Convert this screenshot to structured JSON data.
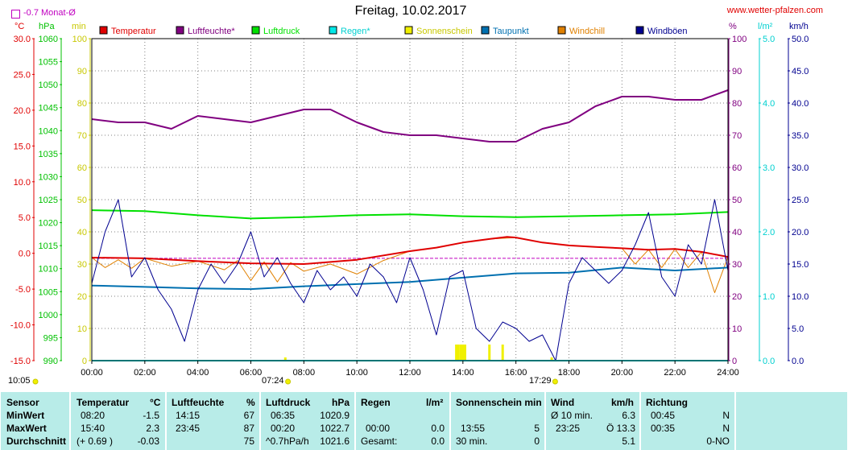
{
  "header": {
    "title": "Freitag, 10.02.2017",
    "site": "www.wetter-pfalzen.com",
    "monat_label": "-0.7 Monat-Ø",
    "unit_c": "°C",
    "unit_hpa": "hPa",
    "unit_min": "min",
    "unit_pct": "%",
    "unit_lm2": "l/m²",
    "unit_kmh": "km/h",
    "sunrise": "07:24",
    "sunset": "17:29",
    "daylength": "10:05"
  },
  "colors": {
    "temperatur": "#e00000",
    "luftfeuchte": "#800080",
    "luftdruck": "#00e000",
    "regen": "#00e8e8",
    "sonnenschein": "#f0f000",
    "taupunkt": "#0070b0",
    "windchill": "#e08000",
    "windboeen": "#000090",
    "monat": "#c000c0"
  },
  "chart_data": {
    "type": "line",
    "title": "Freitag, 10.02.2017",
    "legend": [
      "Temperatur",
      "Luftfeuchte*",
      "Luftdruck",
      "Regen*",
      "Sonnenschein",
      "Taupunkt",
      "Windchill",
      "Windböen"
    ],
    "legend_position": "top",
    "x_ticks": [
      "00:00",
      "02:00",
      "04:00",
      "06:00",
      "08:00",
      "10:00",
      "12:00",
      "14:00",
      "16:00",
      "18:00",
      "20:00",
      "22:00",
      "24:00"
    ],
    "axes": {
      "temp_c": {
        "ticks": [
          "30.0",
          "25.0",
          "20.0",
          "15.0",
          "10.0",
          "5.0",
          "0.0",
          "-5.0",
          "-10.0",
          "-15.0"
        ],
        "range": [
          -15,
          30
        ]
      },
      "pressure_hpa": {
        "ticks": [
          "1060",
          "1055",
          "1050",
          "1045",
          "1040",
          "1035",
          "1030",
          "1025",
          "1020",
          "1015",
          "1010",
          "1005",
          "1000",
          "995",
          "990"
        ],
        "range": [
          990,
          1060
        ]
      },
      "sun_min": {
        "ticks": [
          "100",
          "90",
          "80",
          "70",
          "60",
          "50",
          "40",
          "30",
          "20",
          "10",
          "0"
        ],
        "range": [
          0,
          100
        ]
      },
      "humidity_pct": {
        "ticks": [
          "100",
          "90",
          "80",
          "70",
          "60",
          "50",
          "40",
          "30",
          "20",
          "10",
          "0"
        ],
        "range": [
          0,
          100
        ]
      },
      "rain_lm2": {
        "ticks": [
          "5.0",
          "4.0",
          "3.0",
          "2.0",
          "1.0",
          "0.0"
        ],
        "range": [
          0,
          5
        ]
      },
      "wind_kmh": {
        "ticks": [
          "50.0",
          "45.0",
          "40.0",
          "35.0",
          "30.0",
          "25.0",
          "20.0",
          "15.0",
          "10.0",
          "5.0",
          "0.0"
        ],
        "range": [
          0,
          50
        ]
      }
    },
    "series": [
      {
        "name": "Luftfeuchte*",
        "axis": "humidity_pct",
        "x": [
          0,
          1,
          2,
          3,
          4,
          5,
          6,
          7,
          8,
          9,
          10,
          11,
          12,
          13,
          14,
          15,
          16,
          17,
          18,
          19,
          20,
          21,
          22,
          23,
          24
        ],
        "y": [
          75,
          74,
          74,
          72,
          76,
          75,
          74,
          76,
          78,
          78,
          74,
          71,
          70,
          70,
          69,
          68,
          68,
          72,
          74,
          79,
          82,
          82,
          81,
          81,
          84
        ]
      },
      {
        "name": "Luftdruck",
        "axis": "pressure_hpa",
        "x": [
          0,
          2,
          4,
          6,
          8,
          10,
          12,
          14,
          16,
          18,
          20,
          22,
          24
        ],
        "y": [
          1022.7,
          1022.5,
          1021.6,
          1020.9,
          1021.2,
          1021.6,
          1021.8,
          1021.4,
          1021.2,
          1021.4,
          1021.6,
          1021.8,
          1022.3
        ]
      },
      {
        "name": "Temperatur",
        "axis": "temp_c",
        "x": [
          0,
          2,
          4,
          6,
          8,
          10,
          12,
          13,
          14,
          15,
          15.67,
          16,
          17,
          18,
          19,
          20,
          21,
          22,
          23,
          24
        ],
        "y": [
          -0.6,
          -0.7,
          -1.1,
          -1.4,
          -1.5,
          -0.9,
          0.3,
          0.8,
          1.5,
          2.0,
          2.3,
          2.2,
          1.5,
          1.1,
          0.9,
          0.7,
          0.5,
          0.6,
          0.2,
          -0.5
        ]
      },
      {
        "name": "Taupunkt",
        "axis": "temp_c",
        "x": [
          0,
          2,
          4,
          6,
          8,
          10,
          12,
          14,
          16,
          18,
          20,
          22,
          24
        ],
        "y": [
          -4.5,
          -4.7,
          -4.9,
          -5.0,
          -4.6,
          -4.3,
          -4.0,
          -3.4,
          -2.8,
          -2.7,
          -2.0,
          -2.4,
          -2.0
        ]
      },
      {
        "name": "Windchill",
        "axis": "temp_c",
        "x": [
          0,
          0.5,
          1,
          1.5,
          2,
          3,
          4,
          5,
          5.5,
          6,
          6.5,
          7,
          7.5,
          8,
          9,
          10,
          11,
          12,
          13,
          14,
          15,
          16,
          17,
          18,
          19,
          20,
          20.5,
          21,
          21.5,
          22,
          22.5,
          23,
          23.5,
          24
        ],
        "y": [
          -0.6,
          -2.0,
          -0.9,
          -2.1,
          -0.7,
          -1.8,
          -1.1,
          -2.3,
          -1.0,
          -3.8,
          -1.2,
          -4.0,
          -1.3,
          -2.5,
          -1.5,
          -2.9,
          -1.0,
          0.3,
          0.8,
          1.5,
          2.0,
          2.2,
          1.5,
          1.1,
          0.9,
          0.7,
          -1.5,
          0.5,
          -2.0,
          0.6,
          -2.0,
          0.2,
          -5.5,
          -0.5
        ]
      },
      {
        "name": "Windböen",
        "axis": "wind_kmh",
        "x": [
          0,
          0.5,
          1,
          1.5,
          2,
          2.5,
          3,
          3.5,
          4,
          4.5,
          5,
          5.5,
          6,
          6.5,
          7,
          7.5,
          8,
          8.5,
          9,
          9.5,
          10,
          10.5,
          11,
          11.5,
          12,
          12.5,
          13,
          13.5,
          14,
          14.5,
          15,
          15.5,
          16,
          16.5,
          17,
          17.5,
          18,
          18.5,
          19,
          19.5,
          20,
          20.5,
          21,
          21.5,
          22,
          22.5,
          23,
          23.5,
          24
        ],
        "y": [
          12,
          20,
          25,
          13,
          16,
          11,
          8,
          3,
          11,
          15,
          12,
          15,
          20,
          13,
          16,
          12,
          9,
          14,
          11,
          13,
          10,
          15,
          13,
          9,
          16,
          11,
          4,
          13,
          14,
          5,
          3,
          6,
          5,
          3,
          4,
          0,
          12,
          16,
          14,
          12,
          14,
          18,
          23,
          13,
          10,
          18,
          15,
          25,
          14
        ]
      },
      {
        "name": "Regen*",
        "axis": "rain_lm2",
        "x": [
          0,
          24
        ],
        "y": [
          0,
          0
        ]
      },
      {
        "name": "Sonnenschein",
        "axis": "sun_min",
        "type": "bar",
        "x": [
          7.3,
          13.75,
          13.83,
          13.92,
          14.0,
          14.08,
          15.0,
          15.5,
          17.35
        ],
        "y": [
          1,
          5,
          5,
          5,
          5,
          5,
          5,
          5,
          1
        ]
      },
      {
        "name": "Monat-Ø",
        "axis": "temp_c",
        "x": [
          0,
          24
        ],
        "y": [
          -0.7,
          -0.7
        ]
      }
    ]
  },
  "footer": {
    "sensor": {
      "head": "Sensor",
      "r1": "MinWert",
      "r2": "MaxWert",
      "r3": "Durchschnitt"
    },
    "temperatur": {
      "head": "Temperatur",
      "unit": "°C",
      "r1t": "08:20",
      "r1v": "-1.5",
      "r2t": "15:40",
      "r2v": "2.3",
      "r3t": "(+ 0.69 )",
      "r3v": "-0.03"
    },
    "luftfeuchte": {
      "head": "Luftfeuchte",
      "unit": "%",
      "r1t": "14:15",
      "r1v": "67",
      "r2t": "23:45",
      "r2v": "87",
      "r3v": "75"
    },
    "luftdruck": {
      "head": "Luftdruck",
      "unit": "hPa",
      "r1t": "06:35",
      "r1v": "1020.9",
      "r2t": "00:20",
      "r2v": "1022.7",
      "r3t": "^0.7hPa/h",
      "r3v": "1021.6"
    },
    "regen": {
      "head": "Regen",
      "unit": "l/m²",
      "r2t": "00:00",
      "r2v": "0.0",
      "r3t": "Gesamt:",
      "r3v": "0.0"
    },
    "sonne": {
      "head": "Sonnenschein min",
      "r2t": "13:55",
      "r2v": "5",
      "r3t": "30 min.",
      "r3v": "0"
    },
    "wind": {
      "head": "Wind",
      "unit": "km/h",
      "r1t": "Ø 10 min.",
      "r1v": "6.3",
      "r2t": "23:25",
      "r2v": "Ö 13.3",
      "r3v": "5.1"
    },
    "richtung": {
      "head": "Richtung",
      "r1t": "00:45",
      "r1v": "N",
      "r2t": "00:35",
      "r2v": "N",
      "r3v": "0-NO"
    }
  }
}
